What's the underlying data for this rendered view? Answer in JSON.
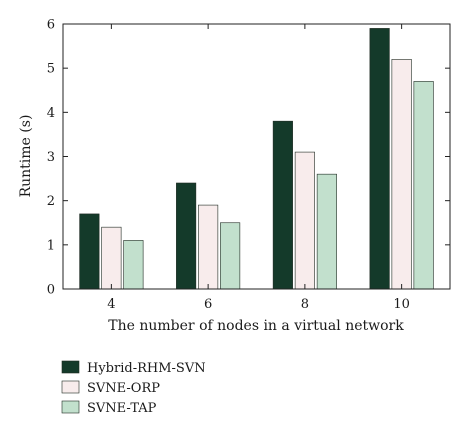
{
  "chart_data": {
    "type": "bar",
    "categories": [
      "4",
      "6",
      "8",
      "10"
    ],
    "series": [
      {
        "name": "Hybrid-RHM-SVN",
        "values": [
          1.7,
          2.4,
          3.8,
          5.9
        ],
        "color": "#143a2a"
      },
      {
        "name": "SVNE-ORP",
        "values": [
          1.4,
          1.9,
          3.1,
          5.2
        ],
        "color": "#f8ecec"
      },
      {
        "name": "SVNE-TAP",
        "values": [
          1.1,
          1.5,
          2.6,
          4.7
        ],
        "color": "#c2e0cd"
      }
    ],
    "xlabel": "The number of nodes in a virtual network",
    "ylabel": "Runtime (s)",
    "ylim": [
      0,
      6
    ],
    "yticks": [
      0,
      1,
      2,
      3,
      4,
      5,
      6
    ],
    "grid": false,
    "legend_position": "bottom-left"
  }
}
